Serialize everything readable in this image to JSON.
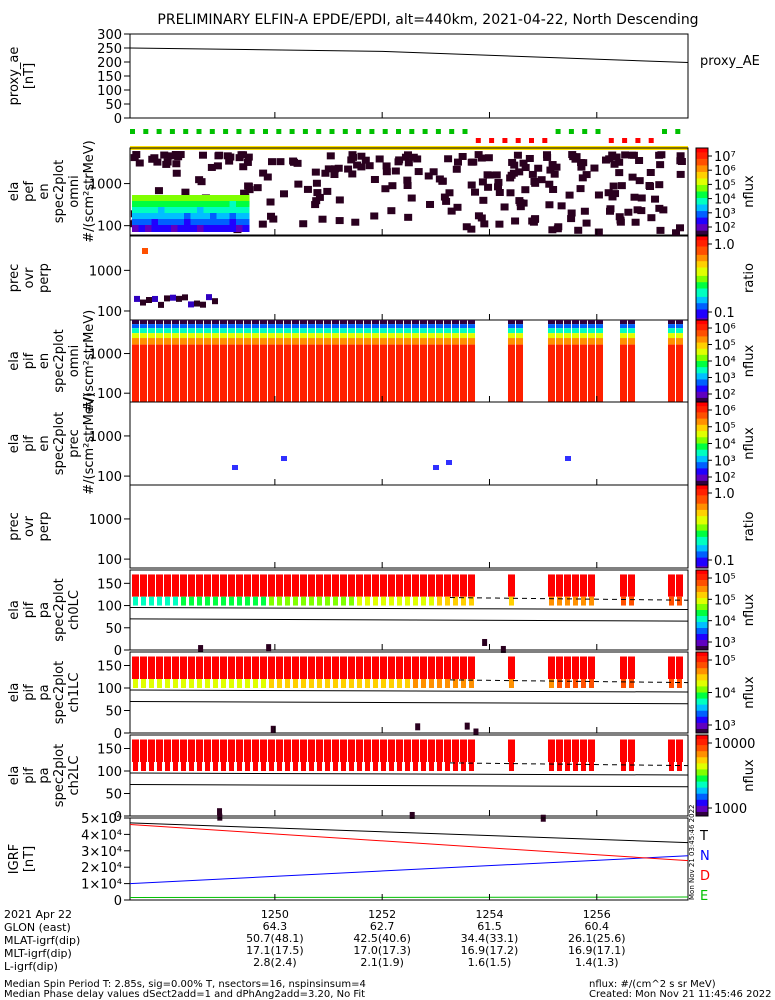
{
  "title": "PRELIMINARY ELFIN-A EPDE/EPDI, alt=440km, 2021-04-22, North Descending",
  "colors": {
    "red": "#ff0000",
    "orange": "#ff8000",
    "green": "#00c000",
    "yellow": "#ffe000",
    "blue": "#0000ff",
    "dark": "#2a001f"
  },
  "chart_data": [
    {
      "type": "line",
      "name": "proxy_AE",
      "ylabel_lines": [
        "proxy_ae",
        "[nT]"
      ],
      "legend": "proxy_AE",
      "yticks": [
        "300",
        "250",
        "200",
        "150",
        "100",
        "50",
        "0"
      ],
      "ylim": [
        0,
        300
      ],
      "x": [
        1247.3,
        1252,
        1257.7
      ],
      "values": [
        250,
        238,
        198
      ]
    },
    {
      "type": "heatmap",
      "name": "ela_pef_en_spec2plot_omni",
      "ylabel_lines": [
        "ela",
        "pef",
        "en",
        "spec2plot",
        "omni",
        "#/(scm²strMeV)"
      ],
      "yticks": [
        "1000",
        "100"
      ],
      "colorbar_label": "nflux",
      "colorbar_ticks": [
        "10⁷",
        "10⁶",
        "10⁵",
        "10⁴",
        "10³",
        "10²"
      ],
      "ylim": [
        60,
        7000
      ]
    },
    {
      "type": "heatmap",
      "name": "prec_ovr_perp_e",
      "ylabel_lines": [
        "prec",
        "ovr",
        "perp"
      ],
      "yticks": [
        "1000",
        "100"
      ],
      "colorbar_label": "ratio",
      "colorbar_ticks": [
        "1.0",
        "0.1"
      ],
      "ylim": [
        60,
        7000
      ]
    },
    {
      "type": "heatmap",
      "name": "ela_pif_en_spec2plot_omni",
      "ylabel_lines": [
        "ela",
        "pif",
        "en",
        "spec2plot",
        "omni",
        "#/(scm²strMeV)"
      ],
      "yticks": [
        "1000",
        "100"
      ],
      "colorbar_label": "nflux",
      "colorbar_ticks": [
        "10⁶",
        "10⁵",
        "10⁴",
        "10³",
        "10²"
      ],
      "ylim": [
        60,
        7000
      ]
    },
    {
      "type": "heatmap",
      "name": "ela_pif_en_spec2plot_prec",
      "ylabel_lines": [
        "ela",
        "pif",
        "en",
        "spec2plot",
        "prec",
        "#/(scm²strMeV)"
      ],
      "yticks": [
        "1000",
        "100"
      ],
      "colorbar_label": "nflux",
      "colorbar_ticks": [
        "10⁶",
        "10⁵",
        "10⁴",
        "10³",
        "10²"
      ],
      "ylim": [
        60,
        7000
      ]
    },
    {
      "type": "heatmap",
      "name": "prec_ovr_perp_i",
      "ylabel_lines": [
        "prec",
        "ovr",
        "perp"
      ],
      "yticks": [
        "1000",
        "100"
      ],
      "colorbar_label": "ratio",
      "colorbar_ticks": [
        "1.0",
        "0.1"
      ],
      "ylim": [
        60,
        7000
      ]
    },
    {
      "type": "heatmap",
      "name": "ela_pif_pa_spec2plot_ch0LC",
      "ylabel_lines": [
        "ela",
        "pif",
        "pa",
        "spec2plot",
        "ch0LC"
      ],
      "yticks": [
        "150",
        "100",
        "50",
        "0"
      ],
      "colorbar_label": "nflux",
      "colorbar_ticks": [
        "10⁵",
        "10⁵",
        "10⁴",
        "10³"
      ],
      "ylim": [
        0,
        180
      ]
    },
    {
      "type": "heatmap",
      "name": "ela_pif_pa_spec2plot_ch1LC",
      "ylabel_lines": [
        "ela",
        "pif",
        "pa",
        "spec2plot",
        "ch1LC"
      ],
      "yticks": [
        "150",
        "100",
        "50",
        "0"
      ],
      "colorbar_label": "nflux",
      "colorbar_ticks": [
        "10⁵",
        "10⁴",
        "10³"
      ],
      "ylim": [
        0,
        180
      ]
    },
    {
      "type": "heatmap",
      "name": "ela_pif_pa_spec2plot_ch2LC",
      "ylabel_lines": [
        "ela",
        "pif",
        "pa",
        "spec2plot",
        "ch2LC"
      ],
      "yticks": [
        "150",
        "100",
        "50",
        "0"
      ],
      "colorbar_label": "nflux",
      "colorbar_ticks": [
        "10000",
        "1000"
      ],
      "ylim": [
        0,
        180
      ]
    },
    {
      "type": "line",
      "name": "IGRF",
      "ylabel_lines": [
        "IGRF",
        "[nT]"
      ],
      "yticks": [
        "5×10⁴",
        "4×10⁴",
        "3×10⁴",
        "2×10⁴",
        "1×10⁴",
        "0"
      ],
      "ylim": [
        0,
        50000
      ],
      "legend": [
        "T",
        "N",
        "D",
        "E"
      ],
      "series": [
        {
          "name": "T",
          "x": [
            1247.3,
            1257.7
          ],
          "values": [
            47000,
            35000
          ]
        },
        {
          "name": "N",
          "x": [
            1247.3,
            1257.7
          ],
          "values": [
            10000,
            27000
          ]
        },
        {
          "name": "D",
          "x": [
            1247.3,
            1257.7
          ],
          "values": [
            46000,
            24000
          ]
        },
        {
          "name": "E",
          "x": [
            1247.3,
            1257.7
          ],
          "values": [
            1500,
            1800
          ]
        }
      ]
    }
  ],
  "x_axis": {
    "ticks": [
      "1250",
      "1252",
      "1254",
      "1256"
    ],
    "xlim": [
      1247.3,
      1257.7
    ]
  },
  "timestamp_vertical": "Mon Nov 21 03:45:46 2022",
  "footer": {
    "rows": [
      {
        "label": "2021 Apr 22",
        "values": [
          "1250",
          "1252",
          "1254",
          "1256"
        ]
      },
      {
        "label": "GLON (east)",
        "values": [
          "64.3",
          "62.7",
          "61.5",
          "60.4"
        ]
      },
      {
        "label": "MLAT-igrf(dip)",
        "values": [
          "50.7(48.1)",
          "42.5(40.6)",
          "34.4(33.1)",
          "26.1(25.6)"
        ]
      },
      {
        "label": "MLT-igrf(dip)",
        "values": [
          "17.1(17.5)",
          "17.0(17.3)",
          "16.9(17.2)",
          "16.9(17.1)"
        ]
      },
      {
        "label": "L-igrf(dip)",
        "values": [
          "2.8(2.4)",
          "2.1(1.9)",
          "1.6(1.5)",
          "1.4(1.3)"
        ]
      }
    ],
    "note1": "Median Spin Period T: 2.85s, sig=0.00% T, nsectors=16, nspinsinsum=4",
    "note2": "Median Phase delay values dSect2add=1 and dPhAng2add=3.20, No Fit",
    "units": "nflux: #/(cm^2 s sr MeV)",
    "created": "Created: Mon Nov 21 11:45:46 2022"
  }
}
